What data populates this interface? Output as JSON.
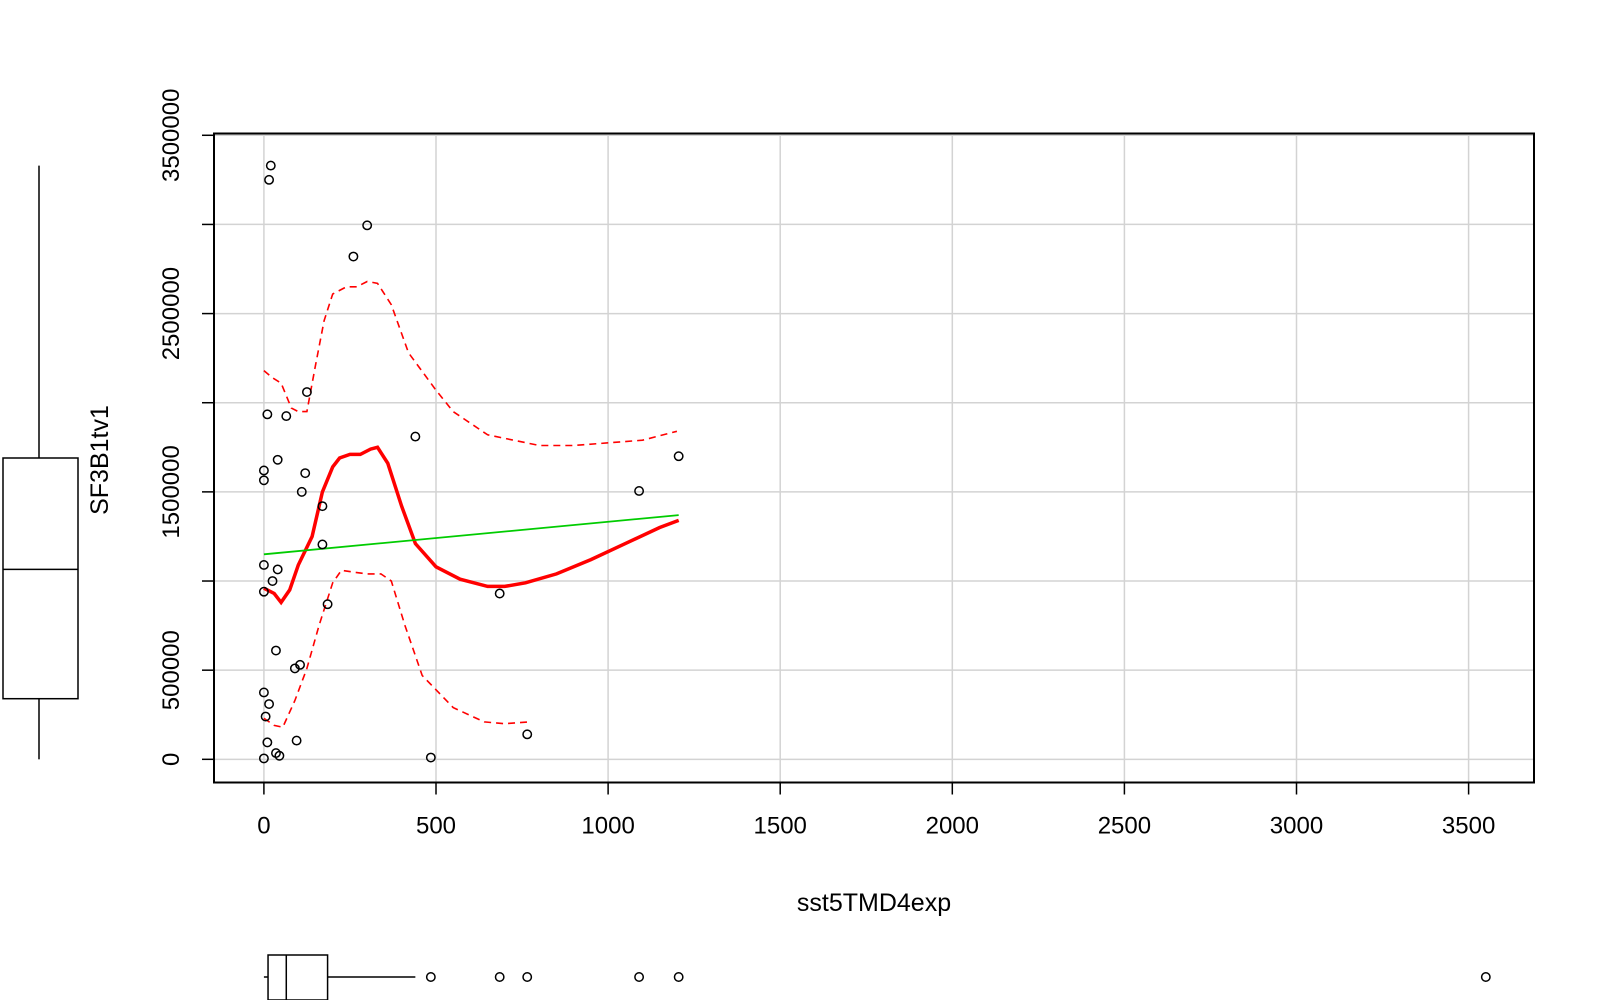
{
  "chart_data": {
    "type": "scatter",
    "xlabel": "sst5TMD4exp",
    "ylabel": "SF3B1tv1",
    "x_ticks": [
      "0",
      "500",
      "1000",
      "1500",
      "2000",
      "2500",
      "3000",
      "3500"
    ],
    "y_ticks": [
      "0",
      "500000",
      "1500000",
      "2500000",
      "3500000"
    ],
    "x_grid": [
      0,
      500,
      1000,
      1500,
      2000,
      2500,
      3000,
      3500
    ],
    "y_grid": [
      0,
      500000,
      1000000,
      1500000,
      2000000,
      2500000,
      3000000,
      3500000
    ],
    "xlim": [
      -145,
      3690
    ],
    "ylim": [
      -130000,
      3510000
    ],
    "grid": true,
    "colors": {
      "points": "#000000",
      "smooth": "#ff0000",
      "linear_fit": "#00cc00",
      "grid": "#d3d3d3"
    },
    "points": [
      [
        20,
        3330000
      ],
      [
        15,
        3250000
      ],
      [
        300,
        2995000
      ],
      [
        260,
        2820000
      ],
      [
        125,
        2060000
      ],
      [
        10,
        1935000
      ],
      [
        65,
        1925000
      ],
      [
        440,
        1810000
      ],
      [
        1205,
        1700000
      ],
      [
        0,
        1620000
      ],
      [
        40,
        1680000
      ],
      [
        120,
        1605000
      ],
      [
        0,
        1565000
      ],
      [
        110,
        1500000
      ],
      [
        1090,
        1505000
      ],
      [
        170,
        1420000
      ],
      [
        170,
        1205000
      ],
      [
        0,
        1090000
      ],
      [
        40,
        1065000
      ],
      [
        25,
        1000000
      ],
      [
        0,
        940000
      ],
      [
        685,
        930000
      ],
      [
        185,
        870000
      ],
      [
        35,
        610000
      ],
      [
        105,
        530000
      ],
      [
        90,
        510000
      ],
      [
        0,
        375000
      ],
      [
        15,
        310000
      ],
      [
        5,
        240000
      ],
      [
        765,
        140000
      ],
      [
        95,
        105000
      ],
      [
        10,
        95000
      ],
      [
        35,
        35000
      ],
      [
        45,
        20000
      ],
      [
        0,
        5000
      ],
      [
        485,
        10000
      ]
    ],
    "series": [
      {
        "role": "smooth",
        "points": [
          [
            0,
            960000
          ],
          [
            30,
            930000
          ],
          [
            50,
            880000
          ],
          [
            75,
            950000
          ],
          [
            100,
            1090000
          ],
          [
            140,
            1250000
          ],
          [
            170,
            1500000
          ],
          [
            200,
            1640000
          ],
          [
            220,
            1690000
          ],
          [
            250,
            1710000
          ],
          [
            280,
            1710000
          ],
          [
            310,
            1740000
          ],
          [
            330,
            1750000
          ],
          [
            360,
            1660000
          ],
          [
            400,
            1420000
          ],
          [
            440,
            1210000
          ],
          [
            500,
            1080000
          ],
          [
            570,
            1010000
          ],
          [
            650,
            970000
          ],
          [
            700,
            970000
          ],
          [
            760,
            990000
          ],
          [
            850,
            1040000
          ],
          [
            950,
            1120000
          ],
          [
            1050,
            1210000
          ],
          [
            1150,
            1300000
          ],
          [
            1205,
            1340000
          ]
        ]
      },
      {
        "role": "smooth-upper",
        "points": [
          [
            0,
            2180000
          ],
          [
            25,
            2140000
          ],
          [
            50,
            2110000
          ],
          [
            80,
            1970000
          ],
          [
            100,
            1950000
          ],
          [
            125,
            1950000
          ],
          [
            150,
            2210000
          ],
          [
            175,
            2460000
          ],
          [
            200,
            2610000
          ],
          [
            240,
            2650000
          ],
          [
            270,
            2650000
          ],
          [
            300,
            2680000
          ],
          [
            330,
            2670000
          ],
          [
            370,
            2550000
          ],
          [
            420,
            2280000
          ],
          [
            500,
            2070000
          ],
          [
            550,
            1950000
          ],
          [
            650,
            1820000
          ],
          [
            800,
            1760000
          ],
          [
            900,
            1760000
          ],
          [
            1100,
            1790000
          ],
          [
            1200,
            1840000
          ]
        ]
      },
      {
        "role": "smooth-lower",
        "points": [
          [
            0,
            230000
          ],
          [
            30,
            190000
          ],
          [
            55,
            180000
          ],
          [
            90,
            330000
          ],
          [
            125,
            510000
          ],
          [
            160,
            750000
          ],
          [
            200,
            990000
          ],
          [
            225,
            1060000
          ],
          [
            260,
            1050000
          ],
          [
            300,
            1040000
          ],
          [
            340,
            1040000
          ],
          [
            370,
            1000000
          ],
          [
            410,
            750000
          ],
          [
            460,
            470000
          ],
          [
            550,
            290000
          ],
          [
            640,
            210000
          ],
          [
            700,
            200000
          ],
          [
            770,
            210000
          ]
        ]
      },
      {
        "role": "linear-fit",
        "points": [
          [
            0,
            1150000
          ],
          [
            1205,
            1370000
          ]
        ]
      }
    ],
    "boxplot_x": {
      "whisker_min": 0,
      "q1": 12,
      "median": 65,
      "q3": 185,
      "whisker_max": 440,
      "outliers": [
        485,
        685,
        765,
        1090,
        1205,
        3550
      ]
    },
    "boxplot_y": {
      "whisker_min": 0,
      "q1": 340000,
      "median": 1065000,
      "q3": 1690000,
      "whisker_max": 3330000
    }
  }
}
